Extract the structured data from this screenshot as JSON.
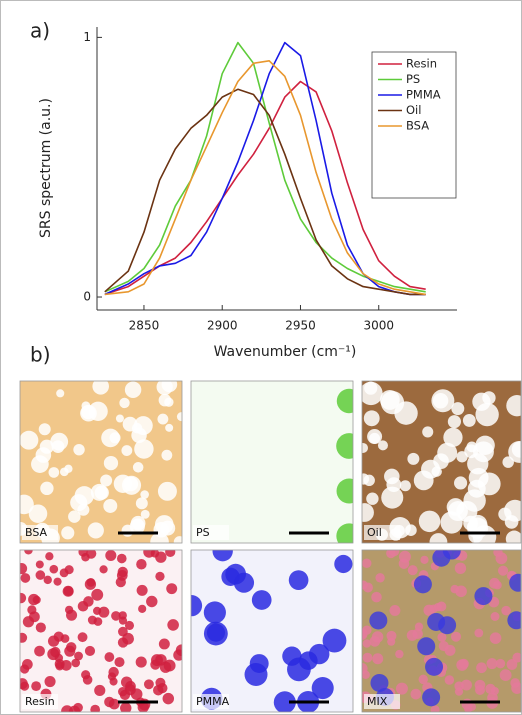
{
  "chart_data": {
    "type": "line",
    "x_label": "Wavenumber (cm⁻¹)",
    "y_label": "SRS spectrum (a.u.)",
    "x": [
      2825,
      2840,
      2850,
      2860,
      2870,
      2880,
      2890,
      2900,
      2910,
      2920,
      2930,
      2940,
      2950,
      2960,
      2970,
      2980,
      2990,
      3000,
      3010,
      3020,
      3030
    ],
    "series": [
      {
        "name": "Resin",
        "color": "#d0213f",
        "values": [
          0.01,
          0.04,
          0.08,
          0.12,
          0.15,
          0.21,
          0.29,
          0.38,
          0.47,
          0.55,
          0.65,
          0.77,
          0.83,
          0.79,
          0.64,
          0.44,
          0.26,
          0.14,
          0.08,
          0.04,
          0.03
        ]
      },
      {
        "name": "PS",
        "color": "#5ecb3a",
        "values": [
          0.02,
          0.06,
          0.11,
          0.2,
          0.35,
          0.45,
          0.62,
          0.86,
          0.98,
          0.9,
          0.67,
          0.45,
          0.3,
          0.21,
          0.15,
          0.11,
          0.08,
          0.06,
          0.04,
          0.03,
          0.02
        ]
      },
      {
        "name": "PMMA",
        "color": "#1a1ae6",
        "values": [
          0.01,
          0.05,
          0.09,
          0.12,
          0.13,
          0.16,
          0.25,
          0.38,
          0.52,
          0.68,
          0.86,
          0.98,
          0.93,
          0.68,
          0.4,
          0.2,
          0.09,
          0.04,
          0.02,
          0.01,
          0.01
        ]
      },
      {
        "name": "Oil",
        "color": "#6b3312",
        "values": [
          0.02,
          0.1,
          0.25,
          0.45,
          0.57,
          0.65,
          0.7,
          0.77,
          0.8,
          0.78,
          0.7,
          0.55,
          0.38,
          0.22,
          0.12,
          0.07,
          0.04,
          0.03,
          0.02,
          0.01,
          0.01
        ]
      },
      {
        "name": "BSA",
        "color": "#e8972e",
        "values": [
          0.01,
          0.02,
          0.05,
          0.15,
          0.3,
          0.45,
          0.58,
          0.71,
          0.83,
          0.9,
          0.91,
          0.85,
          0.7,
          0.48,
          0.3,
          0.17,
          0.09,
          0.05,
          0.03,
          0.02,
          0.01
        ]
      }
    ],
    "xlim": [
      2820,
      3050
    ],
    "xticks": [
      2850,
      2900,
      2950,
      3000
    ],
    "ylim": [
      -0.05,
      1.04
    ],
    "yticks": [
      0,
      1
    ],
    "legend": "upper right"
  },
  "panel_labels": [
    "a)",
    "b)"
  ],
  "images": [
    {
      "label": "BSA"
    },
    {
      "label": "PS"
    },
    {
      "label": "Oil"
    },
    {
      "label": "Resin"
    },
    {
      "label": "PMMA"
    },
    {
      "label": "MIX"
    }
  ]
}
